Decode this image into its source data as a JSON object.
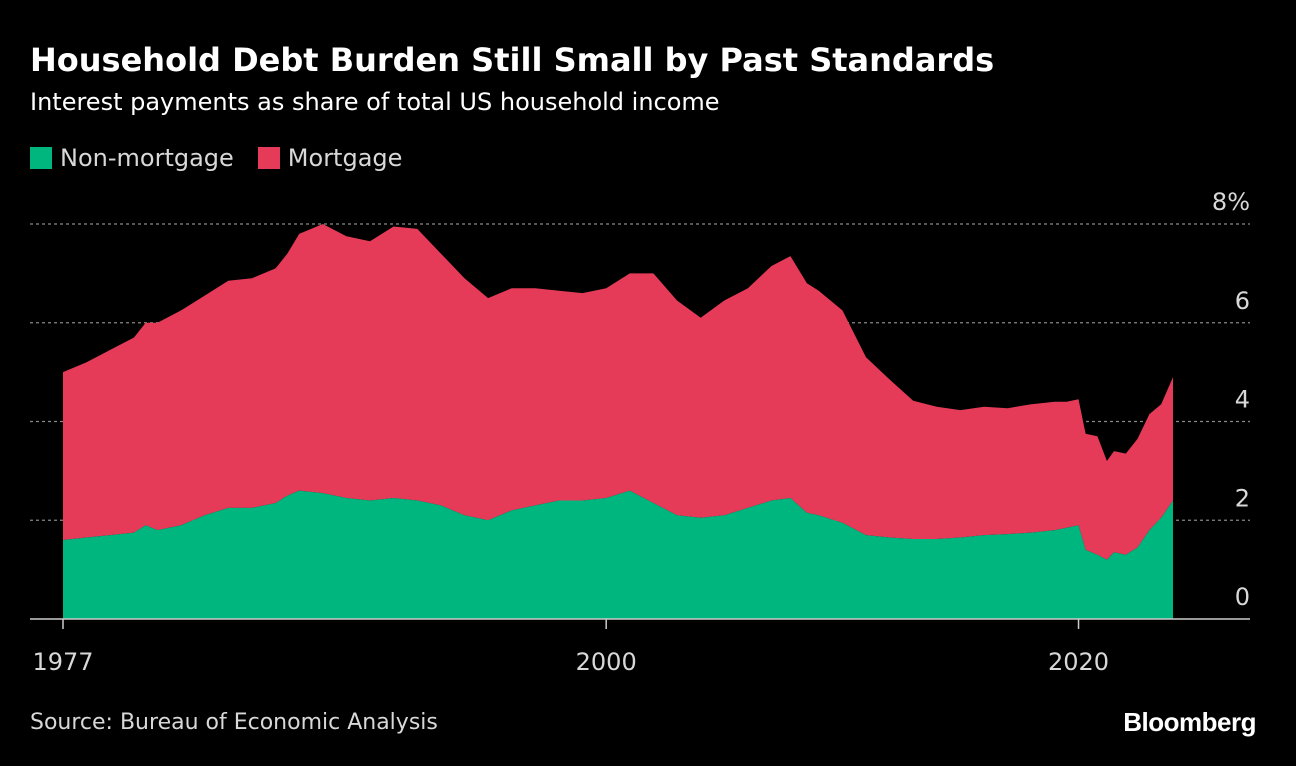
{
  "title": "Household Debt Burden Still Small by Past Standards",
  "subtitle": "Interest payments as share of total US household income",
  "source": "Source: Bureau of Economic Analysis",
  "logo": "Bloomberg",
  "colors": {
    "non_mortgage": "#00b67f",
    "mortgage": "#e63b58",
    "grid": "#888888",
    "axis": "#cccccc"
  },
  "chart_data": {
    "type": "area",
    "stacked": true,
    "legend_position": "top-left",
    "grid": true,
    "y_axis_side": "right",
    "ylim": [
      0,
      8
    ],
    "y_ticks": [
      0,
      2,
      4,
      6,
      8
    ],
    "y_tick_labels": [
      "0",
      "2",
      "4",
      "6",
      "8%"
    ],
    "xlim": [
      1977,
      2027
    ],
    "x_ticks": [
      1977,
      2000,
      2020
    ],
    "x_tick_labels": [
      "1977",
      "2000",
      "2020"
    ],
    "x": [
      1977.0,
      1978.0,
      1979.0,
      1980.0,
      1980.5,
      1981.0,
      1982.0,
      1983.0,
      1984.0,
      1985.0,
      1986.0,
      1986.5,
      1987.0,
      1988.0,
      1989.0,
      1990.0,
      1991.0,
      1992.0,
      1993.0,
      1994.0,
      1995.0,
      1996.0,
      1997.0,
      1998.0,
      1999.0,
      2000.0,
      2001.0,
      2002.0,
      2003.0,
      2004.0,
      2005.0,
      2006.0,
      2007.0,
      2007.8,
      2008.5,
      2009.0,
      2010.0,
      2011.0,
      2012.0,
      2013.0,
      2014.0,
      2015.0,
      2016.0,
      2017.0,
      2018.0,
      2019.0,
      2019.5,
      2020.0,
      2020.3,
      2020.8,
      2021.2,
      2021.5,
      2022.0,
      2022.5,
      2023.0,
      2023.5,
      2024.0
    ],
    "series": [
      {
        "name": "Non-mortgage",
        "values": [
          1.6,
          1.65,
          1.7,
          1.75,
          1.9,
          1.8,
          1.9,
          2.1,
          2.25,
          2.25,
          2.35,
          2.5,
          2.6,
          2.55,
          2.45,
          2.4,
          2.45,
          2.4,
          2.3,
          2.1,
          2.0,
          2.2,
          2.3,
          2.4,
          2.4,
          2.45,
          2.6,
          2.35,
          2.1,
          2.05,
          2.1,
          2.25,
          2.4,
          2.45,
          2.15,
          2.1,
          1.95,
          1.7,
          1.65,
          1.62,
          1.62,
          1.65,
          1.7,
          1.72,
          1.75,
          1.8,
          1.85,
          1.9,
          1.4,
          1.3,
          1.2,
          1.35,
          1.3,
          1.45,
          1.8,
          2.05,
          2.4
        ]
      },
      {
        "name": "Mortgage",
        "values": [
          3.4,
          3.55,
          3.75,
          3.95,
          4.1,
          4.2,
          4.35,
          4.45,
          4.6,
          4.65,
          4.75,
          4.9,
          5.2,
          5.45,
          5.3,
          5.25,
          5.5,
          5.5,
          5.1,
          4.8,
          4.5,
          4.5,
          4.4,
          4.25,
          4.2,
          4.25,
          4.4,
          4.65,
          4.35,
          4.05,
          4.35,
          4.45,
          4.75,
          4.9,
          4.65,
          4.55,
          4.3,
          3.6,
          3.2,
          2.8,
          2.68,
          2.58,
          2.6,
          2.55,
          2.6,
          2.6,
          2.55,
          2.55,
          2.35,
          2.4,
          2.0,
          2.05,
          2.05,
          2.2,
          2.35,
          2.3,
          2.5
        ]
      }
    ]
  }
}
